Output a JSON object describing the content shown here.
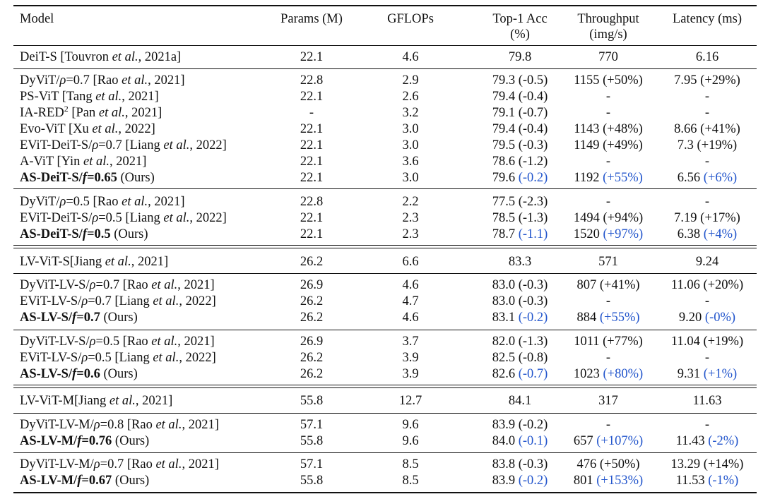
{
  "header": {
    "model": "Model",
    "params": "Params (M)",
    "gflops": "GFLOPs",
    "top1_line1": "Top-1 Acc",
    "top1_line2": "(%)",
    "throughput_line1": "Throughput",
    "throughput_line2": "(img/s)",
    "latency": "Latency (ms)"
  },
  "rows": [
    {
      "pre": "DeiT-S [Touvron ",
      "etal": "et al.",
      "post": ", 2021a]",
      "params": "22.1",
      "gflops": "4.6",
      "top1": "79.8",
      "top1_delta": "",
      "thr": "770",
      "thr_delta": "",
      "lat": "6.16",
      "lat_delta": ""
    },
    {
      "pre": "DyViT/",
      "rho": "ρ",
      "mid": "=0.7 [Rao ",
      "etal": "et al.",
      "post": ", 2021]",
      "params": "22.8",
      "gflops": "2.9",
      "top1": "79.3 (-0.5)",
      "top1_delta": "",
      "thr": "1155 (+50%)",
      "thr_delta": "",
      "lat": "7.95 (+29%)",
      "lat_delta": ""
    },
    {
      "pre": "PS-ViT [Tang ",
      "etal": "et al.",
      "post": ", 2021]",
      "params": "22.1",
      "gflops": "2.6",
      "top1": "79.4 (-0.4)",
      "top1_delta": "",
      "thr": "-",
      "thr_delta": "",
      "lat": "-",
      "lat_delta": ""
    },
    {
      "pre": "IA-RED",
      "sup": "2",
      "mid": " [Pan ",
      "etal": "et al.",
      "post": ", 2021]",
      "params": "-",
      "gflops": "3.2",
      "top1": "79.1 (-0.7)",
      "top1_delta": "",
      "thr": "-",
      "thr_delta": "",
      "lat": "-",
      "lat_delta": ""
    },
    {
      "pre": "Evo-ViT [Xu ",
      "etal": "et al.",
      "post": ", 2022]",
      "params": "22.1",
      "gflops": "3.0",
      "top1": "79.4 (-0.4)",
      "top1_delta": "",
      "thr": "1143 (+48%)",
      "thr_delta": "",
      "lat": "8.66 (+41%)",
      "lat_delta": ""
    },
    {
      "pre": "EViT-DeiT-S/",
      "rho": "ρ",
      "mid": "=0.7 [Liang ",
      "etal": "et al.",
      "post": ", 2022]",
      "params": "22.1",
      "gflops": "3.0",
      "top1": "79.5 (-0.3)",
      "top1_delta": "",
      "thr": "1149 (+49%)",
      "thr_delta": "",
      "lat": "7.3 (+19%)",
      "lat_delta": ""
    },
    {
      "pre": "A-ViT [Yin ",
      "etal": "et al.",
      "post": ", 2021]",
      "params": "22.1",
      "gflops": "3.6",
      "top1": "78.6 (-1.2)",
      "top1_delta": "",
      "thr": "-",
      "thr_delta": "",
      "lat": "-",
      "lat_delta": ""
    },
    {
      "bold_a": "AS-DeiT-S/",
      "f": "f",
      "bold_b": "=0.65",
      "post": " (Ours)",
      "params": "22.1",
      "gflops": "3.0",
      "top1": "79.6 ",
      "top1_delta": "(-0.2)",
      "thr": "1192 ",
      "thr_delta": "(+55%)",
      "lat": "6.56 ",
      "lat_delta": "(+6%)"
    },
    {
      "pre": "DyViT/",
      "rho": "ρ",
      "mid": "=0.5 [Rao ",
      "etal": "et al.",
      "post": ", 2021]",
      "params": "22.8",
      "gflops": "2.2",
      "top1": "77.5 (-2.3)",
      "top1_delta": "",
      "thr": "-",
      "thr_delta": "",
      "lat": "-",
      "lat_delta": ""
    },
    {
      "pre": "EViT-DeiT-S/",
      "rho": "ρ",
      "mid": "=0.5 [Liang ",
      "etal": "et al.",
      "post": ", 2022]",
      "params": "22.1",
      "gflops": "2.3",
      "top1": "78.5 (-1.3)",
      "top1_delta": "",
      "thr": "1494 (+94%)",
      "thr_delta": "",
      "lat": "7.19 (+17%)",
      "lat_delta": ""
    },
    {
      "bold_a": "AS-DeiT-S/",
      "f": "f",
      "bold_b": "=0.5",
      "post": " (Ours)",
      "params": "22.1",
      "gflops": "2.3",
      "top1": "78.7 ",
      "top1_delta": "(-1.1)",
      "thr": "1520 ",
      "thr_delta": "(+97%)",
      "lat": "6.38 ",
      "lat_delta": "(+4%)"
    },
    {
      "pre": "LV-ViT-S[Jiang ",
      "etal": "et al.",
      "post": ", 2021]",
      "params": "26.2",
      "gflops": "6.6",
      "top1": "83.3",
      "top1_delta": "",
      "thr": "571",
      "thr_delta": "",
      "lat": "9.24",
      "lat_delta": ""
    },
    {
      "pre": "DyViT-LV-S/",
      "rho": "ρ",
      "mid": "=0.7 [Rao ",
      "etal": "et al.",
      "post": ", 2021]",
      "params": "26.9",
      "gflops": "4.6",
      "top1": "83.0 (-0.3)",
      "top1_delta": "",
      "thr": "807 (+41%)",
      "thr_delta": "",
      "lat": "11.06 (+20%)",
      "lat_delta": ""
    },
    {
      "pre": "EViT-LV-S/",
      "rho": "ρ",
      "mid": "=0.7 [Liang ",
      "etal": "et al.",
      "post": ", 2022]",
      "params": "26.2",
      "gflops": "4.7",
      "top1": "83.0 (-0.3)",
      "top1_delta": "",
      "thr": "-",
      "thr_delta": "",
      "lat": "-",
      "lat_delta": ""
    },
    {
      "bold_a": "AS-LV-S/",
      "f": "f",
      "bold_b": "=0.7",
      "post": " (Ours)",
      "params": "26.2",
      "gflops": "4.6",
      "top1": "83.1 ",
      "top1_delta": "(-0.2)",
      "thr": "884 ",
      "thr_delta": "(+55%)",
      "lat": "9.20 ",
      "lat_delta": "(-0%)"
    },
    {
      "pre": "DyViT-LV-S/",
      "rho": "ρ",
      "mid": "=0.5 [Rao ",
      "etal": "et al.",
      "post": ", 2021]",
      "params": "26.9",
      "gflops": "3.7",
      "top1": "82.0 (-1.3)",
      "top1_delta": "",
      "thr": "1011 (+77%)",
      "thr_delta": "",
      "lat": "11.04 (+19%)",
      "lat_delta": ""
    },
    {
      "pre": "EViT-LV-S/",
      "rho": "ρ",
      "mid": "=0.5 [Liang ",
      "etal": "et al.",
      "post": ", 2022]",
      "params": "26.2",
      "gflops": "3.9",
      "top1": "82.5 (-0.8)",
      "top1_delta": "",
      "thr": "-",
      "thr_delta": "",
      "lat": "-",
      "lat_delta": ""
    },
    {
      "bold_a": "AS-LV-S/",
      "f": "f",
      "bold_b": "=0.6",
      "post": " (Ours)",
      "params": "26.2",
      "gflops": "3.9",
      "top1": "82.6 ",
      "top1_delta": "(-0.7)",
      "thr": "1023 ",
      "thr_delta": "(+80%)",
      "lat": "9.31 ",
      "lat_delta": "(+1%)"
    },
    {
      "pre": "LV-ViT-M[Jiang ",
      "etal": "et al.",
      "post": ", 2021]",
      "params": "55.8",
      "gflops": "12.7",
      "top1": "84.1",
      "top1_delta": "",
      "thr": "317",
      "thr_delta": "",
      "lat": "11.63",
      "lat_delta": ""
    },
    {
      "pre": "DyViT-LV-M/",
      "rho": "ρ",
      "mid": "=0.8 [Rao ",
      "etal": "et al.",
      "post": ", 2021]",
      "params": "57.1",
      "gflops": "9.6",
      "top1": "83.9 (-0.2)",
      "top1_delta": "",
      "thr": "-",
      "thr_delta": "",
      "lat": "-",
      "lat_delta": ""
    },
    {
      "bold_a": "AS-LV-M/",
      "f": "f",
      "bold_b": "=0.76",
      "post": " (Ours)",
      "params": "55.8",
      "gflops": "9.6",
      "top1": "84.0 ",
      "top1_delta": "(-0.1)",
      "thr": "657 ",
      "thr_delta": "(+107%)",
      "lat": "11.43 ",
      "lat_delta": "(-2%)"
    },
    {
      "pre": "DyViT-LV-M/",
      "rho": "ρ",
      "mid": "=0.7 [Rao ",
      "etal": "et al.",
      "post": ", 2021]",
      "params": "57.1",
      "gflops": "8.5",
      "top1": "83.8 (-0.3)",
      "top1_delta": "",
      "thr": "476 (+50%)",
      "thr_delta": "",
      "lat": "13.29 (+14%)",
      "lat_delta": ""
    },
    {
      "bold_a": "AS-LV-M/",
      "f": "f",
      "bold_b": "=0.67",
      "post": " (Ours)",
      "params": "55.8",
      "gflops": "8.5",
      "top1": "83.9 ",
      "top1_delta": "(-0.2)",
      "thr": "801 ",
      "thr_delta": "(+153%)",
      "lat": "11.53 ",
      "lat_delta": "(-1%)"
    }
  ],
  "colors": {
    "text": "#111111",
    "delta": "#2255cc",
    "rule": "#111111"
  }
}
